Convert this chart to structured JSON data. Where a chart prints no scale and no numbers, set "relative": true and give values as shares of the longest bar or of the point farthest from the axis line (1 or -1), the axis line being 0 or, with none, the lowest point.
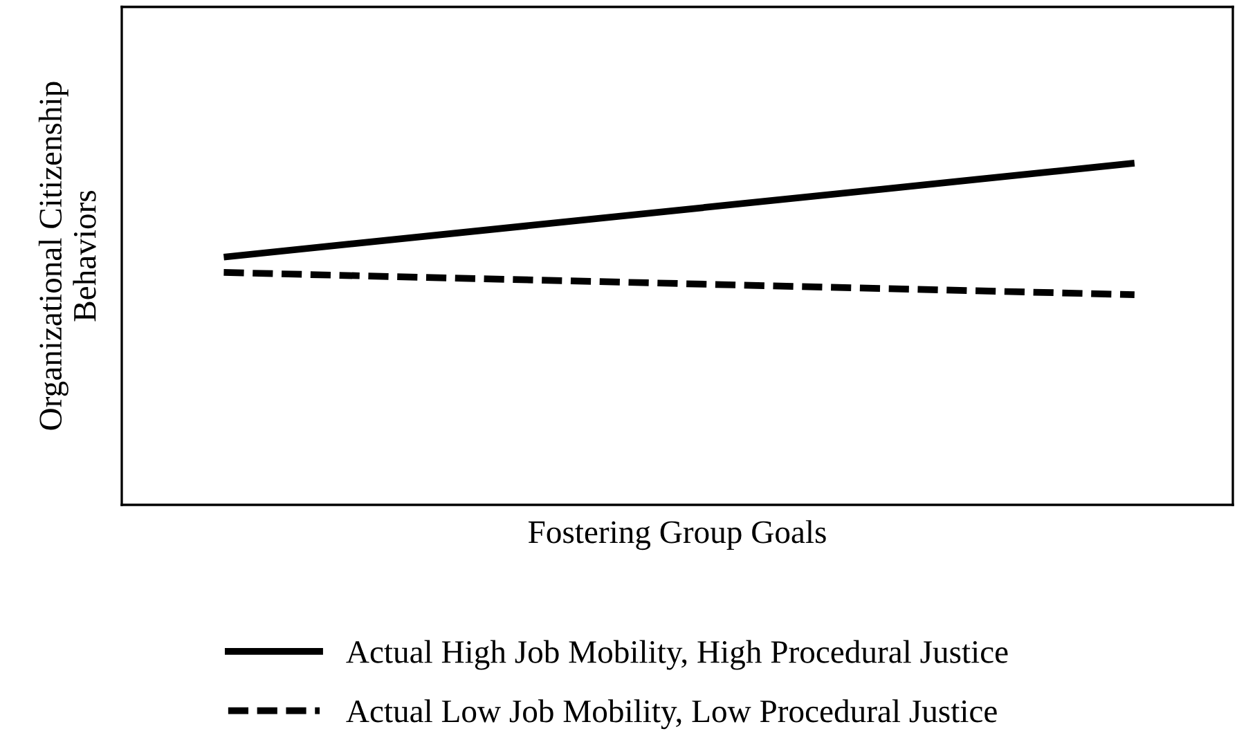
{
  "chart_data": {
    "type": "line",
    "relative": true,
    "xlabel": "Fostering Group Goals",
    "ylabel": "Organizational Citizenship\nBehaviors",
    "categories": [
      null,
      null
    ],
    "series": [
      {
        "name": "Actual High Job Mobility, High Procedural Justice",
        "color": "#000000",
        "line_style": "solid",
        "values": [
          0.725,
          1
        ]
      },
      {
        "name": "Actual Low Job Mobility, Low Procedural Justice",
        "color": "#000000",
        "line_style": "dashed",
        "values": [
          0.68,
          0.615
        ]
      }
    ],
    "legend": "bottom",
    "marker": "none",
    "tick_labels": false
  }
}
